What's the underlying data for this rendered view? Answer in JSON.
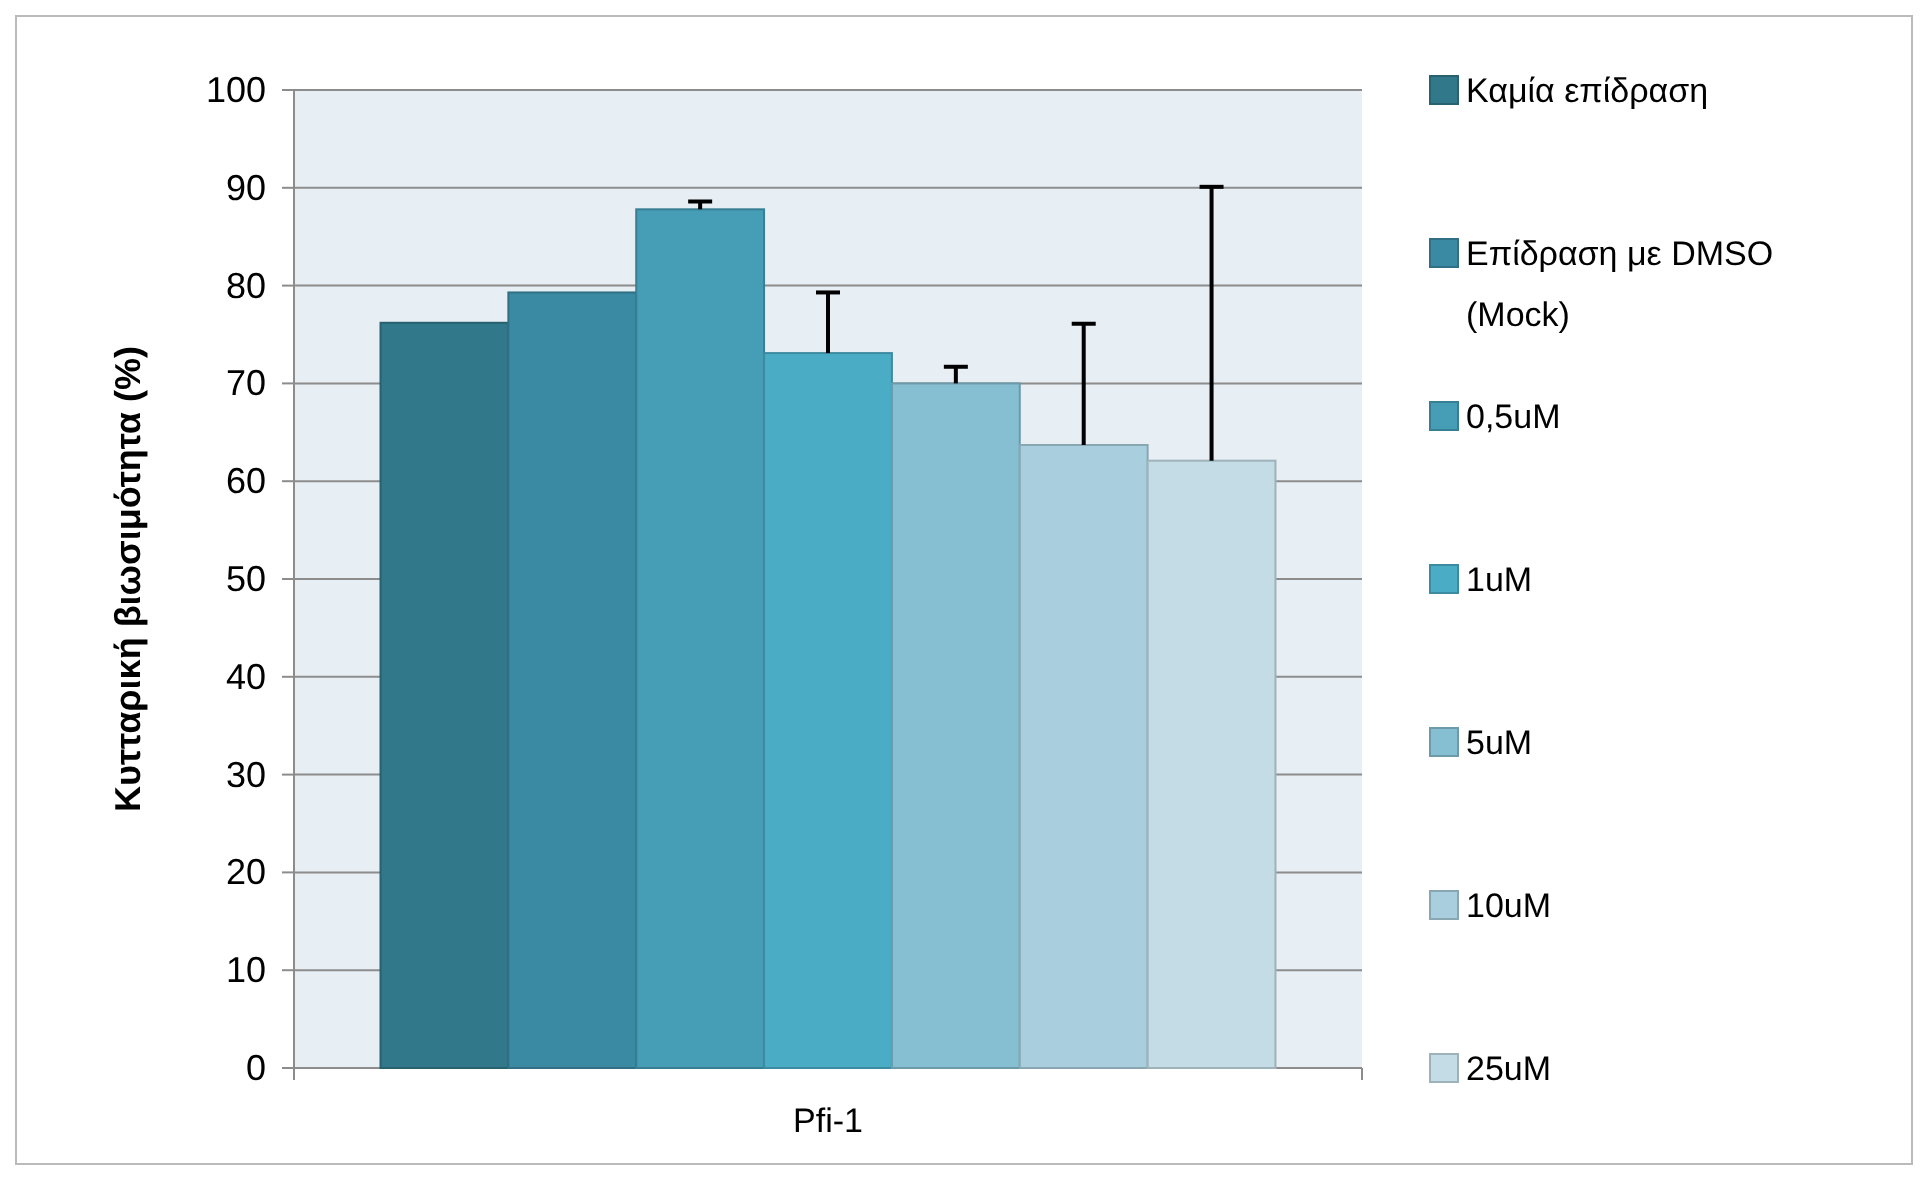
{
  "chart_data": {
    "type": "bar",
    "ylabel": "Κυτταρική βιωσιμότητα (%)",
    "categories": [
      "Pfi-1"
    ],
    "series": [
      {
        "name": "Καμία επίδραση",
        "color": "#31788a",
        "values": [
          76.2
        ]
      },
      {
        "name": "Επίδραση με DMSO (Mock)",
        "color": "#3b8aa3",
        "values": [
          79.3
        ]
      },
      {
        "name": "0,5uM",
        "color": "#459db6",
        "values": [
          87.8
        ],
        "errors": [
          [
            87.8,
            88.6
          ]
        ]
      },
      {
        "name": "1uM",
        "color": "#4bacc6",
        "values": [
          73.1
        ],
        "errors": [
          [
            73.1,
            79.3
          ]
        ]
      },
      {
        "name": "5uM",
        "color": "#86bfd1",
        "values": [
          70
        ],
        "errors": [
          [
            70,
            71.7
          ]
        ]
      },
      {
        "name": "10uM",
        "color": "#a9cfde",
        "values": [
          63.7
        ],
        "errors": [
          [
            63.7,
            76.1
          ]
        ]
      },
      {
        "name": "25uM",
        "color": "#c4dce6",
        "values": [
          62.1
        ],
        "errors": [
          [
            62.1,
            90.1
          ]
        ]
      }
    ],
    "ylim": [
      0,
      100
    ],
    "yticks": [
      0,
      10,
      20,
      30,
      40,
      50,
      60,
      70,
      80,
      90,
      100
    ],
    "grid": "y",
    "legend": "right"
  }
}
